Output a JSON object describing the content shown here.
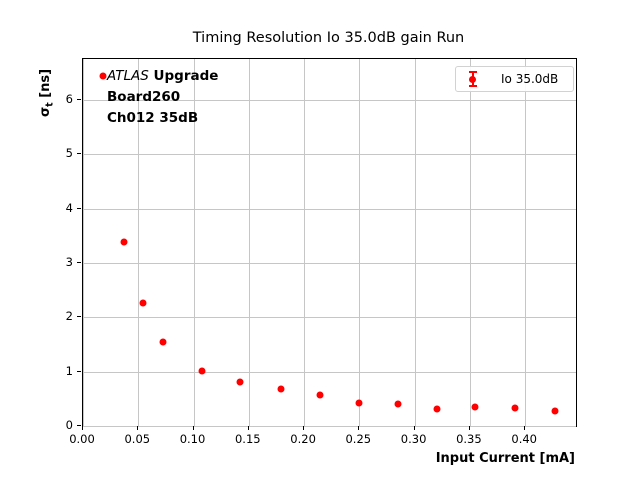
{
  "title": "Timing Resolution Io 35.0dB gain Run",
  "annotation": {
    "atlas": "ATLAS",
    "upgrade": " Upgrade",
    "line2": "Board260",
    "line3": "Ch012 35dB"
  },
  "legend": {
    "label": "Io 35.0dB",
    "marker": "errorbar-dot",
    "position": "top-right"
  },
  "chart_data": {
    "type": "scatter",
    "title": "Timing Resolution Io 35.0dB gain Run",
    "xlabel": "Input Current [mA]",
    "ylabel_sigma": "σ",
    "ylabel_sub": "t",
    "ylabel_unit": " [ns]",
    "xlim": [
      0,
      0.446
    ],
    "ylim": [
      0,
      6.75
    ],
    "grid": true,
    "legend_position": "top-right",
    "x_ticks": {
      "values": [
        0.0,
        0.05,
        0.1,
        0.15,
        0.2,
        0.25,
        0.3,
        0.35,
        0.4
      ],
      "labels": [
        "0.00",
        "0.05",
        "0.10",
        "0.15",
        "0.20",
        "0.25",
        "0.30",
        "0.35",
        "0.40"
      ]
    },
    "y_ticks": {
      "values": [
        0,
        1,
        2,
        3,
        4,
        5,
        6
      ],
      "labels": [
        "0",
        "1",
        "2",
        "3",
        "4",
        "5",
        "6"
      ]
    },
    "series": [
      {
        "name": "Io 35.0dB",
        "color": "#ff0000",
        "marker": "circle-with-errorbar",
        "points": [
          [
            0.018,
            6.43
          ],
          [
            0.037,
            3.38
          ],
          [
            0.054,
            2.27
          ],
          [
            0.072,
            1.55
          ],
          [
            0.108,
            1.02
          ],
          [
            0.142,
            0.81
          ],
          [
            0.179,
            0.68
          ],
          [
            0.214,
            0.57
          ],
          [
            0.25,
            0.43
          ],
          [
            0.285,
            0.41
          ],
          [
            0.32,
            0.32
          ],
          [
            0.355,
            0.35
          ],
          [
            0.391,
            0.33
          ],
          [
            0.427,
            0.27
          ]
        ]
      }
    ],
    "colors": {
      "marker": "#ff0000",
      "grid": "#c6c6c6",
      "axis": "#000000"
    }
  }
}
